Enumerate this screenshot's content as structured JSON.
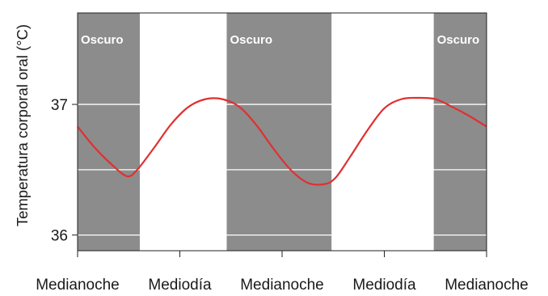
{
  "chart_data": {
    "type": "line",
    "title": "",
    "xlabel": "",
    "ylabel": "Temperatura corporal oral (°C)",
    "x_ticks": [
      "Medianoche",
      "Mediodía",
      "Medianoche",
      "Mediodía",
      "Medianoche"
    ],
    "y_ticks": [
      36,
      37
    ],
    "ylim": [
      35.88,
      37.7
    ],
    "xlim_hours": [
      0,
      48
    ],
    "grid": true,
    "dark_bands": [
      {
        "label": "Oscuro",
        "start_hour": 0,
        "end_hour": 7.3
      },
      {
        "label": "Oscuro",
        "start_hour": 17.5,
        "end_hour": 29.8
      },
      {
        "label": "Oscuro",
        "start_hour": 41.8,
        "end_hour": 48
      }
    ],
    "series": [
      {
        "name": "",
        "hours": [
          0,
          2,
          4,
          5.8,
          7,
          9,
          11,
          13,
          15,
          17,
          19,
          21,
          23,
          25,
          27,
          29,
          30.3,
          32,
          34,
          36,
          38,
          40,
          42,
          44,
          46,
          48
        ],
        "values": [
          36.83,
          36.67,
          36.54,
          36.45,
          36.5,
          36.67,
          36.85,
          36.98,
          37.04,
          37.04,
          36.98,
          36.84,
          36.66,
          36.5,
          36.4,
          36.39,
          36.44,
          36.6,
          36.8,
          36.97,
          37.04,
          37.05,
          37.04,
          36.98,
          36.91,
          36.83
        ]
      }
    ]
  },
  "colors": {
    "band": "#8c8c8c",
    "line": "#e03030",
    "grid": "#ffffff",
    "frame": "#222222"
  }
}
